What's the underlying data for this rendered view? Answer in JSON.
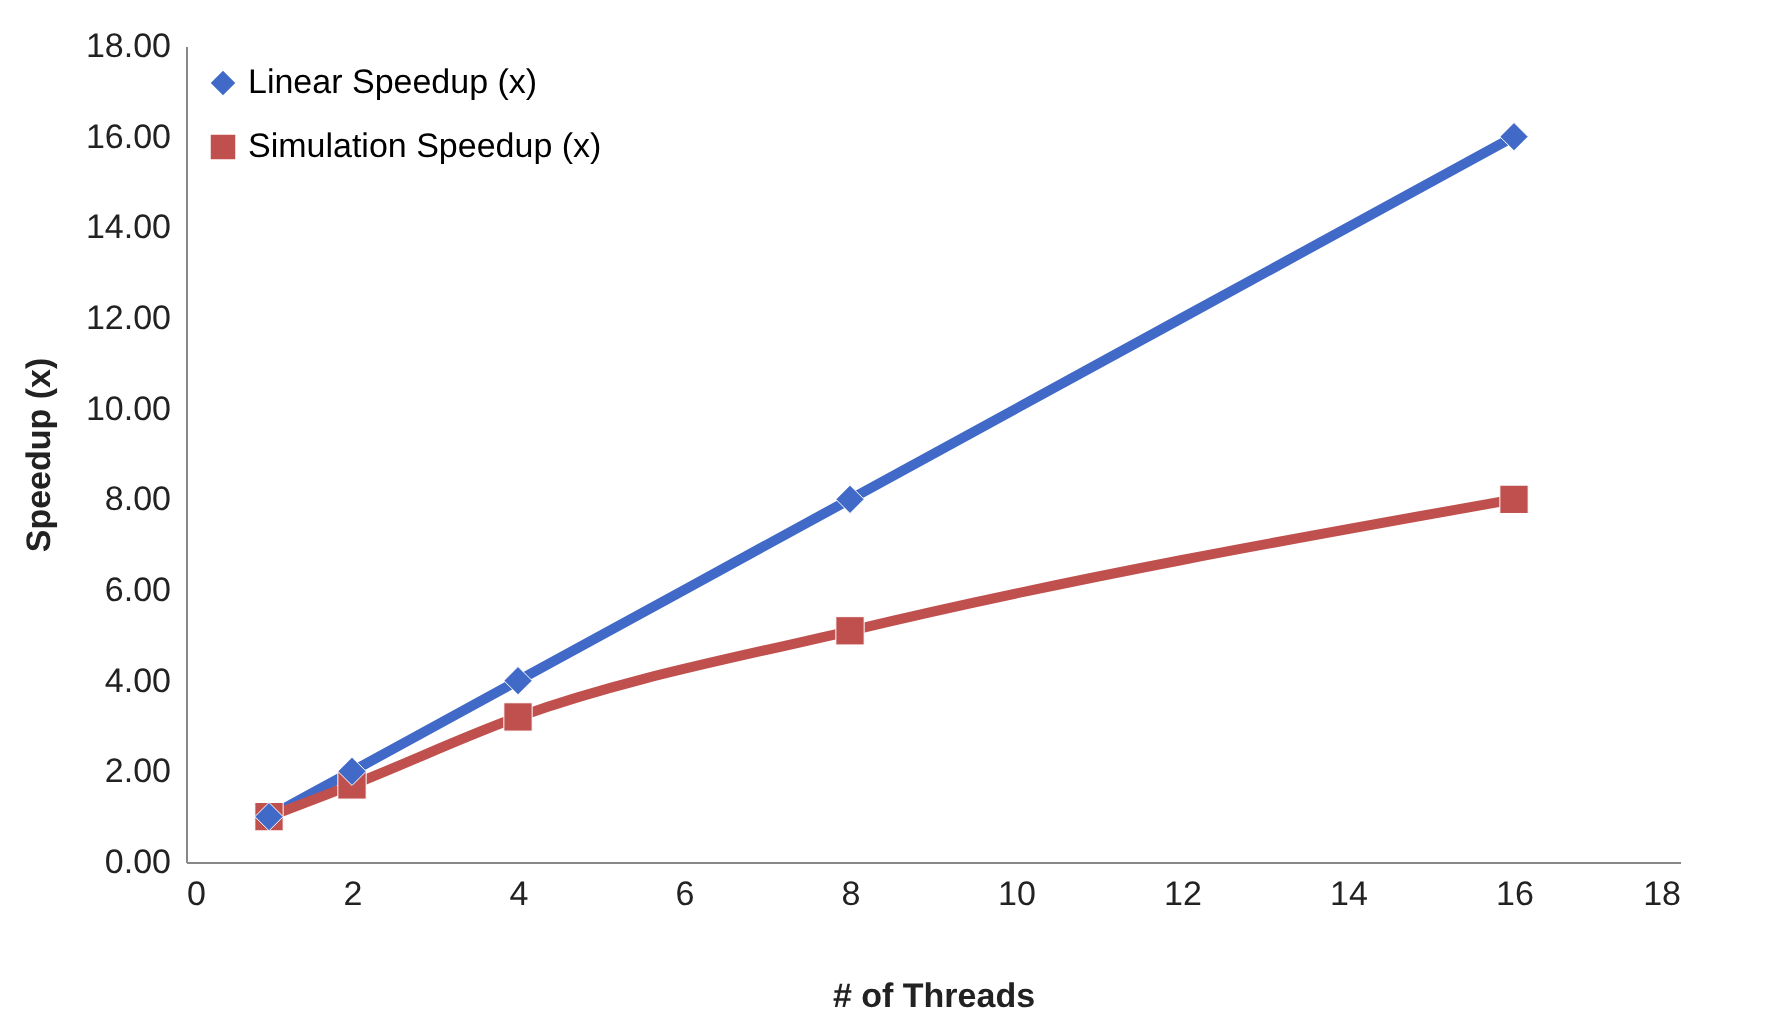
{
  "chart_data": {
    "type": "line",
    "xlabel": "# of Threads",
    "ylabel": "Speedup (x)",
    "x": [
      1,
      2,
      4,
      8,
      16
    ],
    "series": [
      {
        "name": "Linear Speedup (x)",
        "color": "#4169c8",
        "marker": "diamond",
        "values": [
          1,
          2,
          4,
          8,
          16
        ]
      },
      {
        "name": "Simulation Speedup (x)",
        "color": "#c0504d",
        "marker": "square",
        "values": [
          1.0,
          1.7,
          3.2,
          5.1,
          8.0
        ]
      }
    ],
    "xlim": [
      0,
      18
    ],
    "xticks": [
      0,
      2,
      4,
      6,
      8,
      10,
      12,
      14,
      16,
      18
    ],
    "ylim": [
      0,
      18
    ],
    "yticks": [
      {
        "value": 0,
        "label": "0.00"
      },
      {
        "value": 2,
        "label": "2.00"
      },
      {
        "value": 4,
        "label": "4.00"
      },
      {
        "value": 6,
        "label": "6.00"
      },
      {
        "value": 8,
        "label": "8.00"
      },
      {
        "value": 10,
        "label": "10.00"
      },
      {
        "value": 12,
        "label": "12.00"
      },
      {
        "value": 14,
        "label": "14.00"
      },
      {
        "value": 16,
        "label": "16.00"
      },
      {
        "value": 18,
        "label": "18.00"
      }
    ],
    "grid": false,
    "legend": "top left",
    "line_style": "solid"
  }
}
